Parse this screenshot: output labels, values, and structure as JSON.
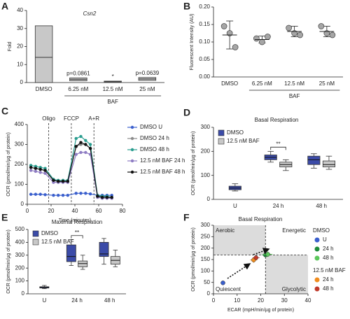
{
  "chart_data": [
    {
      "type": "range_bar",
      "label": "A",
      "title": "Csn2",
      "ylabel": "Fold",
      "categories": [
        "DMSO",
        "6.25 nM",
        "12.5 nM",
        "25 nM"
      ],
      "group_label": "BAF",
      "low": [
        0,
        1.0,
        0.3,
        1.2
      ],
      "high": [
        31.5,
        2.6,
        0.8,
        2.8
      ],
      "mean": [
        14,
        1.8,
        0.5,
        2
      ],
      "annotations": [
        null,
        "p=0.0861",
        "*",
        "p=0.0639"
      ],
      "color": "#c8c8c8",
      "ylim": [
        0,
        40
      ],
      "yticks": [
        0,
        10,
        20,
        30,
        40
      ]
    },
    {
      "type": "dot",
      "label": "B",
      "ylabel": "Fluorescent Intensity (AU)",
      "categories": [
        "DMSO",
        "6.25 nM",
        "12.5 nM",
        "25 nM"
      ],
      "group_label": "BAF",
      "points": [
        [
          0.145,
          0.125,
          0.085
        ],
        [
          0.11,
          0.1,
          0.115
        ],
        [
          0.14,
          0.125,
          0.12
        ],
        [
          0.145,
          0.125,
          0.12
        ]
      ],
      "means": [
        0.12,
        0.107,
        0.13,
        0.13
      ],
      "errors": [
        0.04,
        0.01,
        0.015,
        0.015
      ],
      "color": "#a6a6a6",
      "ylim": [
        0,
        0.2
      ],
      "yticks": [
        {
          "value": 0,
          "label": "0.00"
        },
        {
          "value": 0.05,
          "label": "0.05"
        },
        {
          "value": 0.1,
          "label": "0.10"
        },
        {
          "value": 0.15,
          "label": "0.15"
        },
        {
          "value": 0.2,
          "label": "0.20"
        }
      ]
    },
    {
      "type": "line",
      "label": "C",
      "xlabel": "Time (minutes)",
      "ylabel": "OCR (pmol/min/µg of protein)",
      "x": [
        3,
        7,
        11,
        15,
        22,
        26,
        30,
        34,
        41,
        45,
        49,
        53,
        59,
        63,
        67,
        71
      ],
      "series": [
        {
          "name": "DMSO U",
          "color": "#3a5fcd",
          "values": [
            50,
            50,
            50,
            48,
            45,
            45,
            45,
            45,
            55,
            55,
            55,
            52,
            45,
            45,
            45,
            45
          ]
        },
        {
          "name": "DMSO 24 h",
          "color": "#8c8c8c",
          "values": [
            185,
            180,
            175,
            170,
            120,
            115,
            115,
            115,
            290,
            300,
            300,
            280,
            40,
            35,
            35,
            30
          ]
        },
        {
          "name": "DMSO 48 h",
          "color": "#2a9d8f",
          "values": [
            195,
            190,
            185,
            180,
            125,
            120,
            120,
            120,
            330,
            340,
            320,
            300,
            45,
            40,
            40,
            35
          ]
        },
        {
          "name": "12.5 nM BAF 24 h",
          "color": "#8e7cc3",
          "values": [
            170,
            165,
            160,
            155,
            110,
            110,
            110,
            110,
            250,
            260,
            260,
            250,
            35,
            30,
            30,
            30
          ]
        },
        {
          "name": "12.5 nM BAF 48 h",
          "color": "#111111",
          "values": [
            185,
            180,
            175,
            170,
            120,
            115,
            115,
            115,
            290,
            310,
            300,
            280,
            40,
            35,
            35,
            35
          ]
        }
      ],
      "injections": [
        {
          "x": 18,
          "label": "Oligo"
        },
        {
          "x": 37,
          "label": "FCCP"
        },
        {
          "x": 56,
          "label": "A+R"
        }
      ],
      "xlim": [
        0,
        80
      ],
      "xticks": [
        0,
        20,
        40,
        60,
        80
      ],
      "ylim": [
        0,
        400
      ],
      "yticks": [
        0,
        100,
        200,
        300,
        400
      ]
    },
    {
      "type": "box",
      "label": "D",
      "title": "Basal Respiration",
      "ylabel": "OCR (pmol/min/µg of protein)",
      "categories": [
        "U",
        "24 h",
        "48 h"
      ],
      "series": [
        {
          "name": "DMSO",
          "color": "#3b4ba8",
          "min": [
            35,
            155,
            130
          ],
          "q1": [
            40,
            165,
            145
          ],
          "median": [
            47,
            175,
            165
          ],
          "q3": [
            55,
            185,
            180
          ],
          "max": [
            65,
            200,
            190
          ]
        },
        {
          "name": "12.5 nM BAF",
          "color": "#c8c8c8",
          "min": [
            null,
            120,
            125
          ],
          "q1": [
            null,
            135,
            135
          ],
          "median": [
            null,
            145,
            145
          ],
          "q3": [
            null,
            155,
            160
          ],
          "max": [
            null,
            165,
            180
          ]
        }
      ],
      "annotation": "**",
      "ylim": [
        0,
        300
      ],
      "yticks": [
        0,
        100,
        200,
        300
      ]
    },
    {
      "type": "box",
      "label": "E",
      "title": "Maximal Respiration",
      "ylabel": "OCR (pmol/min/µg of protein)",
      "categories": [
        "U",
        "24 h",
        "48 h"
      ],
      "series": [
        {
          "name": "DMSO",
          "color": "#3b4ba8",
          "min": [
            40,
            220,
            230
          ],
          "q1": [
            45,
            250,
            290
          ],
          "median": [
            50,
            290,
            310
          ],
          "q3": [
            55,
            380,
            400
          ],
          "max": [
            65,
            420,
            430
          ]
        },
        {
          "name": "12.5 nM BAF",
          "color": "#c8c8c8",
          "min": [
            null,
            190,
            210
          ],
          "q1": [
            null,
            210,
            230
          ],
          "median": [
            null,
            235,
            260
          ],
          "q3": [
            null,
            255,
            290
          ],
          "max": [
            null,
            300,
            340
          ]
        }
      ],
      "annotation": "**",
      "ylim": [
        0,
        500
      ],
      "yticks": [
        0,
        100,
        200,
        300,
        400,
        500
      ]
    },
    {
      "type": "scatter",
      "label": "F",
      "title": "Basal Respiration",
      "xlabel": "ECAR (mpH/min/µg of protein)",
      "ylabel": "OCR (pmol/min/µg of protein)",
      "quadrants": [
        "Aerobic",
        "Energetic",
        "Quiescent",
        "Glycolytic"
      ],
      "x_threshold": 22,
      "y_threshold": 170,
      "groups": [
        {
          "title": "DMSO",
          "series": [
            {
              "name": "U",
              "color": "#3a5fcd",
              "x": 4,
              "y": 48,
              "xerr": 1,
              "yerr": 8
            },
            {
              "name": "24 h",
              "color": "#1e8c3a",
              "x": 22,
              "y": 170,
              "xerr": 1.5,
              "yerr": 10
            },
            {
              "name": "48 h",
              "color": "#5cc75c",
              "x": 23,
              "y": 173,
              "xerr": 2,
              "yerr": 12
            }
          ]
        },
        {
          "title": "12.5 nM BAF",
          "series": [
            {
              "name": "24 h",
              "color": "#f08c1e",
              "x": 17,
              "y": 148,
              "xerr": 1.5,
              "yerr": 12
            },
            {
              "name": "48 h",
              "color": "#c0392b",
              "x": 18,
              "y": 158,
              "xerr": 1.5,
              "yerr": 10
            }
          ]
        }
      ],
      "xlim": [
        0,
        40
      ],
      "xticks": [
        0,
        10,
        20,
        30,
        40
      ],
      "ylim": [
        0,
        300
      ],
      "yticks": [
        0,
        50,
        100,
        150,
        200,
        250,
        300
      ]
    }
  ]
}
